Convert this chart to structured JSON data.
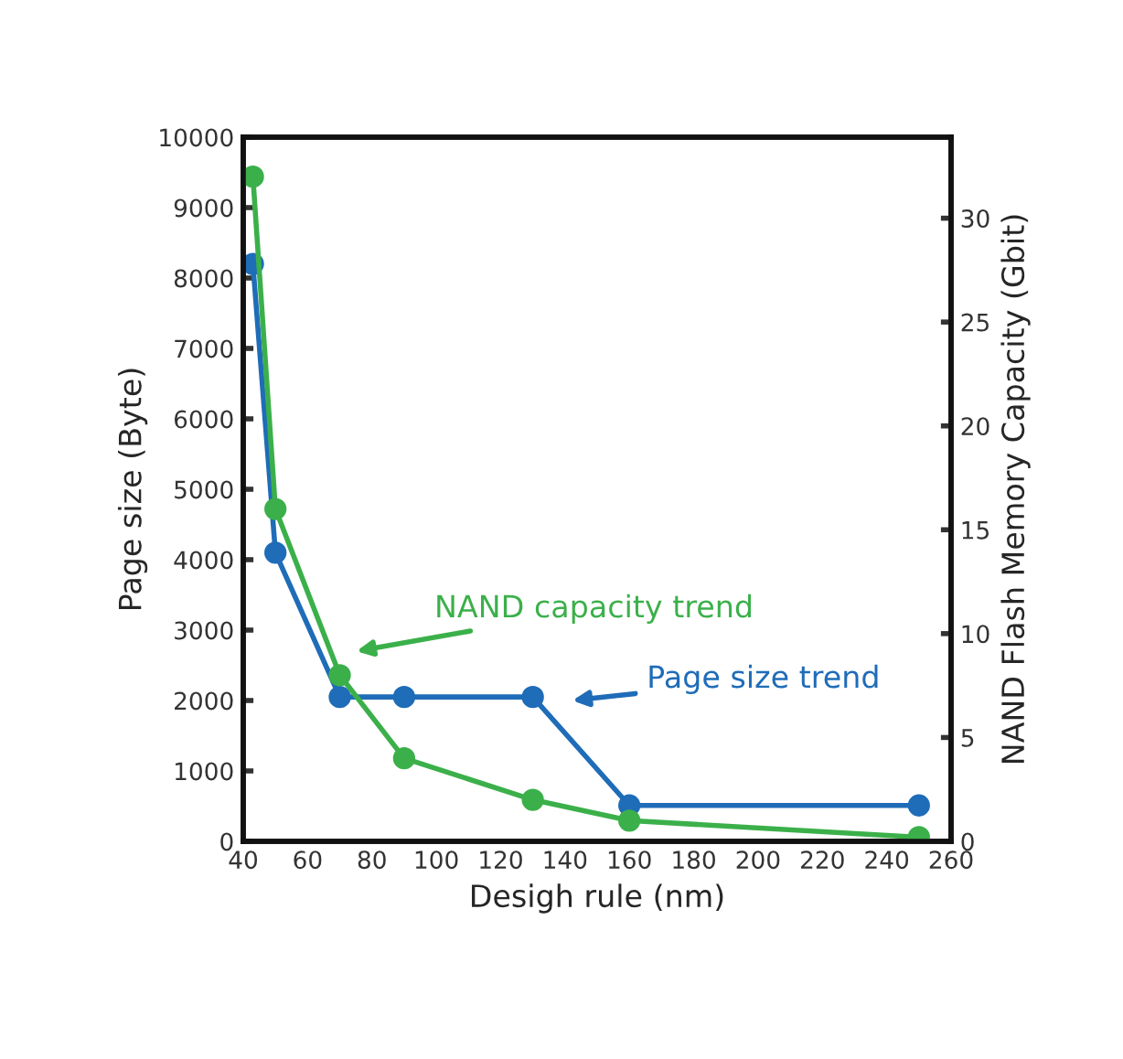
{
  "chart_data": {
    "type": "line",
    "xlabel": "Desigh rule (nm)",
    "ylabel": "Page size (Byte)",
    "y2label": "NAND Flash Memory Capacity (Gbit)",
    "xlim": [
      40,
      260
    ],
    "xticks": [
      40,
      60,
      80,
      100,
      120,
      140,
      160,
      180,
      200,
      220,
      240,
      260
    ],
    "ylim": [
      0,
      10000
    ],
    "yticks": [
      0,
      1000,
      2000,
      3000,
      4000,
      5000,
      6000,
      7000,
      8000,
      9000,
      10000
    ],
    "y2lim": [
      0,
      33.9
    ],
    "y2ticks": [
      0,
      5,
      10,
      15,
      20,
      25,
      30
    ],
    "marker": "circle",
    "line_style": "solid",
    "grid": false,
    "series": [
      {
        "color": "#1f6cb8",
        "x": [
          43,
          50,
          70,
          90,
          130,
          160,
          250
        ],
        "values": [
          8200,
          4100,
          2050,
          2050,
          2050,
          510,
          510
        ]
      },
      {
        "color": "#3bb04a",
        "axis": "y2",
        "x": [
          43,
          50,
          70,
          90,
          130,
          160,
          250
        ],
        "values": [
          32,
          16,
          8,
          4,
          2,
          1,
          0.2
        ]
      }
    ],
    "annotations": [
      "NAND capacity trend",
      "Page size trend"
    ]
  }
}
